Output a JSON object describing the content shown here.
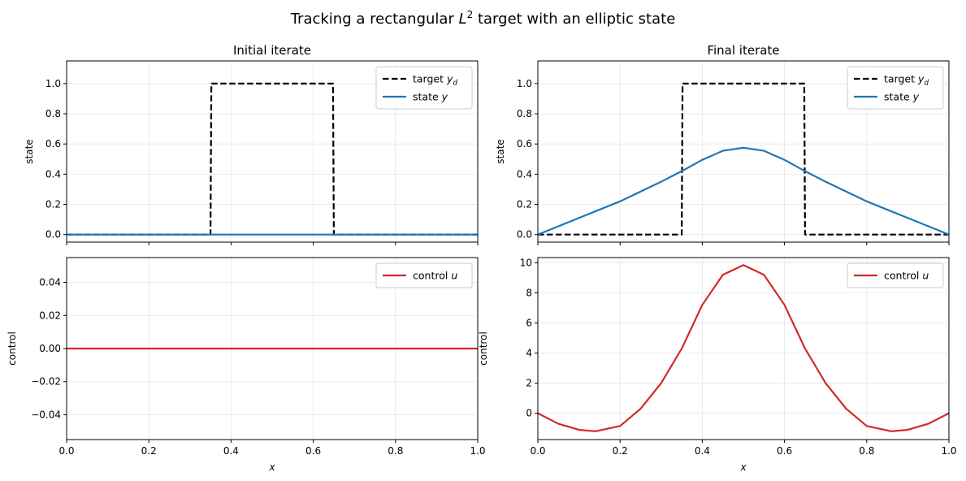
{
  "chart_data": {
    "type": "line",
    "suptitle": "Tracking a rectangular L² target with an elliptic state",
    "column_titles": [
      "Initial iterate",
      "Final iterate"
    ],
    "xlabel": "x",
    "xlim": [
      0,
      1
    ],
    "xticks": [
      "0.0",
      "0.2",
      "0.4",
      "0.6",
      "0.8",
      "1.0"
    ],
    "panels": [
      {
        "id": "initial-state",
        "ylabel": "state",
        "ylim": [
          -0.05,
          1.15
        ],
        "yticks": [
          "0.0",
          "0.2",
          "0.4",
          "0.6",
          "0.8",
          "1.0"
        ],
        "series": [
          {
            "name": "target y_d",
            "legend_prefix": "target ",
            "legend_var": "y",
            "legend_sub": "d",
            "color": "#000000",
            "dash": true,
            "x": [
              0,
              0.35,
              0.352,
              0.648,
              0.65,
              1
            ],
            "y": [
              0,
              0,
              1,
              1,
              0,
              0
            ]
          },
          {
            "name": "state y",
            "legend_prefix": "state ",
            "legend_var": "y",
            "legend_sub": "",
            "color": "#1f77b4",
            "dash": false,
            "x": [
              0,
              1
            ],
            "y": [
              0,
              0
            ]
          }
        ]
      },
      {
        "id": "final-state",
        "ylabel": "state",
        "ylim": [
          -0.05,
          1.15
        ],
        "yticks": [
          "0.0",
          "0.2",
          "0.4",
          "0.6",
          "0.8",
          "1.0"
        ],
        "series": [
          {
            "name": "target y_d",
            "legend_prefix": "target ",
            "legend_var": "y",
            "legend_sub": "d",
            "color": "#000000",
            "dash": true,
            "x": [
              0,
              0.35,
              0.352,
              0.648,
              0.65,
              1
            ],
            "y": [
              0,
              0,
              1,
              1,
              0,
              0
            ]
          },
          {
            "name": "state y",
            "legend_prefix": "state ",
            "legend_var": "y",
            "legend_sub": "",
            "color": "#1f77b4",
            "dash": false,
            "x": [
              0,
              0.05,
              0.1,
              0.15,
              0.2,
              0.25,
              0.3,
              0.35,
              0.4,
              0.45,
              0.5,
              0.55,
              0.6,
              0.65,
              0.7,
              0.75,
              0.8,
              0.85,
              0.9,
              0.95,
              1
            ],
            "y": [
              0,
              0.055,
              0.11,
              0.165,
              0.22,
              0.285,
              0.35,
              0.42,
              0.495,
              0.555,
              0.575,
              0.555,
              0.495,
              0.42,
              0.35,
              0.285,
              0.22,
              0.165,
              0.11,
              0.055,
              0
            ]
          }
        ]
      },
      {
        "id": "initial-control",
        "ylabel": "control",
        "ylim": [
          -0.055,
          0.055
        ],
        "yticks": [
          "−0.04",
          "−0.02",
          "0.00",
          "0.02",
          "0.04"
        ],
        "ytick_values": [
          -0.04,
          -0.02,
          0,
          0.02,
          0.04
        ],
        "series": [
          {
            "name": "control u",
            "legend_prefix": "control ",
            "legend_var": "u",
            "legend_sub": "",
            "color": "#d62728",
            "dash": false,
            "x": [
              0,
              1
            ],
            "y": [
              0,
              0
            ]
          }
        ]
      },
      {
        "id": "final-control",
        "ylabel": "control",
        "ylim": [
          -1.75,
          10.35
        ],
        "yticks": [
          "0",
          "2",
          "4",
          "6",
          "8",
          "10"
        ],
        "ytick_values": [
          0,
          2,
          4,
          6,
          8,
          10
        ],
        "series": [
          {
            "name": "control u",
            "legend_prefix": "control ",
            "legend_var": "u",
            "legend_sub": "",
            "color": "#d62728",
            "dash": false,
            "x": [
              0,
              0.05,
              0.1,
              0.14,
              0.2,
              0.25,
              0.3,
              0.35,
              0.4,
              0.45,
              0.5,
              0.55,
              0.6,
              0.65,
              0.7,
              0.75,
              0.8,
              0.86,
              0.9,
              0.95,
              1
            ],
            "y": [
              0,
              -0.7,
              -1.1,
              -1.2,
              -0.85,
              0.3,
              2.0,
              4.3,
              7.2,
              9.2,
              9.85,
              9.2,
              7.2,
              4.3,
              2.0,
              0.3,
              -0.85,
              -1.2,
              -1.1,
              -0.7,
              0
            ]
          }
        ]
      }
    ]
  }
}
